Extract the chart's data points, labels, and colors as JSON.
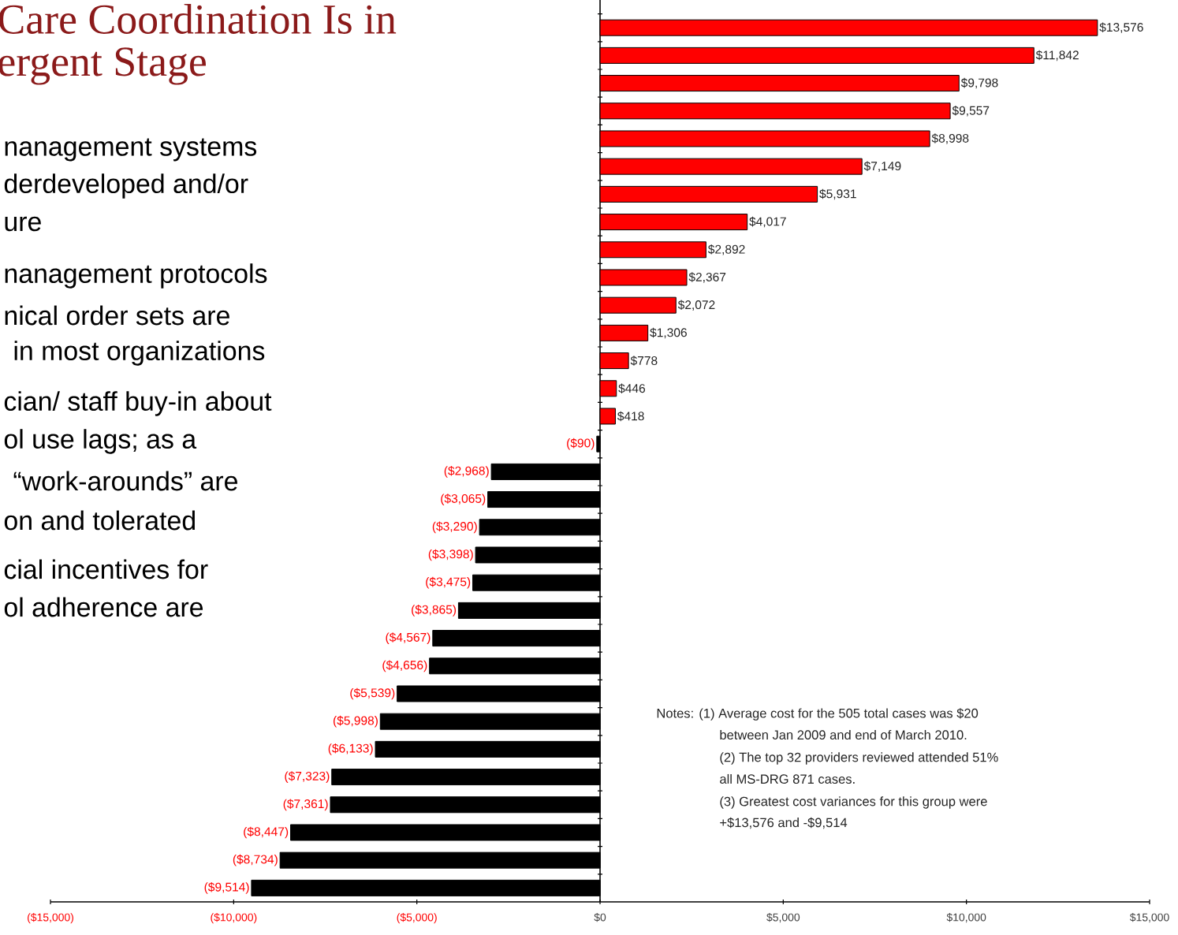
{
  "chart_data": {
    "type": "bar",
    "orientation": "horizontal",
    "title": "Care Coordination Is in",
    "subtitle": "ergent Stage",
    "categories": [
      null,
      null,
      null,
      null,
      null,
      null,
      null,
      null,
      null,
      null,
      null,
      null,
      null,
      null,
      null,
      null,
      null,
      null,
      null,
      null,
      null,
      null,
      null,
      null,
      null,
      null,
      null,
      null,
      null,
      null,
      null,
      null
    ],
    "values": [
      13576,
      11842,
      9798,
      9557,
      8998,
      7149,
      5931,
      4017,
      2892,
      2367,
      2072,
      1306,
      778,
      446,
      418,
      -90,
      -2968,
      -3065,
      -3290,
      -3398,
      -3475,
      -3865,
      -4567,
      -4656,
      -5539,
      -5998,
      -6133,
      -7323,
      -7361,
      -8447,
      -8734,
      -9514
    ],
    "colors": [
      "#ff0000",
      "#ff0000",
      "#ff0000",
      "#ff0000",
      "#ff0000",
      "#ff0000",
      "#ff0000",
      "#ff0000",
      "#ff0000",
      "#ff0000",
      "#ff0000",
      "#ff0000",
      "#ff0000",
      "#ff0000",
      "#ff0000",
      "#000000",
      "#000000",
      "#000000",
      "#000000",
      "#000000",
      "#000000",
      "#000000",
      "#000000",
      "#000000",
      "#000000",
      "#000000",
      "#000000",
      "#000000",
      "#000000",
      "#000000",
      "#000000",
      "#000000"
    ],
    "value_labels": [
      "$13,576",
      "$11,842",
      "$9,798",
      "$9,557",
      "$8,998",
      "$7,149",
      "$5,931",
      "$4,017",
      "$2,892",
      "$2,367",
      "$2,072",
      "$1,306",
      "$778",
      "$446",
      "$418",
      "($90)",
      "($2,968)",
      "($3,065)",
      "($3,290)",
      "($3,398)",
      "($3,475)",
      "($3,865)",
      "($4,567)",
      "($4,656)",
      "($5,539)",
      "($5,998)",
      "($6,133)",
      "($7,323)",
      "($7,361)",
      "($8,447)",
      "($8,734)",
      "($9,514)"
    ],
    "xlim": [
      -15000,
      15000
    ],
    "xticks": [
      {
        "value": -15000,
        "label": "($15,000)"
      },
      {
        "value": -10000,
        "label": "($10,000)"
      },
      {
        "value": -5000,
        "label": "($5,000)"
      },
      {
        "value": 0,
        "label": "$0"
      },
      {
        "value": 5000,
        "label": "$5,000"
      },
      {
        "value": 10000,
        "label": "$10,000"
      },
      {
        "value": 15000,
        "label": "$15,000"
      }
    ],
    "tick_labels": "x",
    "annotations": [
      "nanagement systems",
      "derdeveloped and/or",
      "ure",
      "nanagement protocols",
      "nical order sets are",
      "in most organizations",
      "cian/ staff buy-in about",
      "ol use lags; as a",
      "“work-arounds” are",
      "on and tolerated",
      "cial incentives for",
      "ol adherence are",
      "Notes: (1) Average cost for the 505 total cases was $20",
      "between Jan 2009 and end of March 2010.",
      "(2) The top 32 providers reviewed attended 51%",
      "all MS-DRG 871 cases.",
      "(3) Greatest cost variances for this group were",
      "+$13,576 and -$9,514"
    ]
  }
}
